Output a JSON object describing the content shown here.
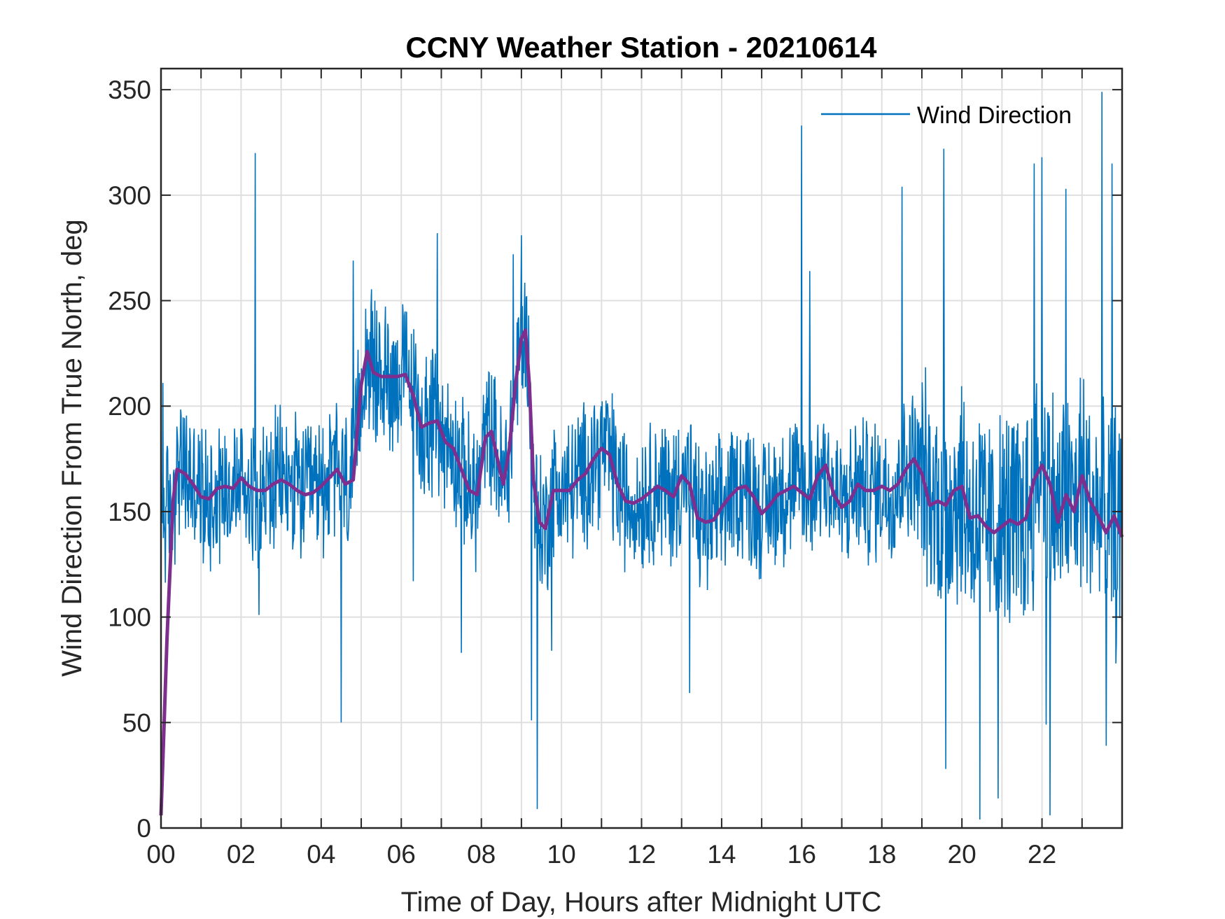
{
  "colors": {
    "raw": "#0072BD",
    "smooth": "#7E2F8E",
    "axis": "#262626",
    "grid": "#DFDFDF",
    "background": "#FFFFFF"
  },
  "chart_data": {
    "type": "line",
    "title": "CCNY Weather Station - 20210614",
    "xlabel": "Time of Day, Hours after Midnight UTC",
    "ylabel": "Wind Direction From True North, deg",
    "xlim": [
      0,
      24
    ],
    "ylim": [
      0,
      360
    ],
    "x_ticks": [
      0,
      2,
      4,
      6,
      8,
      10,
      12,
      14,
      16,
      18,
      20,
      22
    ],
    "x_tick_labels": [
      "00",
      "02",
      "04",
      "06",
      "08",
      "10",
      "12",
      "14",
      "16",
      "18",
      "20",
      "22"
    ],
    "y_ticks": [
      0,
      50,
      100,
      150,
      200,
      250,
      300,
      350
    ],
    "y_tick_labels": [
      "0",
      "50",
      "100",
      "150",
      "200",
      "250",
      "300",
      "350"
    ],
    "grid": true,
    "legend": {
      "entries": [
        "Wind Direction"
      ],
      "location": "top-right"
    },
    "series": [
      {
        "name": "Wind Direction",
        "style": "raw-noisy",
        "baseline": "follows smoothed series",
        "spread_deg": 30,
        "sample_step_hours": 0.012,
        "notable_points": [
          {
            "x": 0.05,
            "y": 211
          },
          {
            "x": 2.35,
            "y": 320
          },
          {
            "x": 2.45,
            "y": 101
          },
          {
            "x": 4.5,
            "y": 50
          },
          {
            "x": 4.8,
            "y": 269
          },
          {
            "x": 6.3,
            "y": 117
          },
          {
            "x": 6.9,
            "y": 282
          },
          {
            "x": 7.5,
            "y": 83
          },
          {
            "x": 8.8,
            "y": 272
          },
          {
            "x": 9.0,
            "y": 281
          },
          {
            "x": 9.25,
            "y": 51
          },
          {
            "x": 9.4,
            "y": 9
          },
          {
            "x": 9.75,
            "y": 84
          },
          {
            "x": 13.2,
            "y": 64
          },
          {
            "x": 16.0,
            "y": 333
          },
          {
            "x": 16.2,
            "y": 264
          },
          {
            "x": 18.5,
            "y": 304
          },
          {
            "x": 19.55,
            "y": 322
          },
          {
            "x": 19.6,
            "y": 28
          },
          {
            "x": 20.45,
            "y": 4
          },
          {
            "x": 20.9,
            "y": 14
          },
          {
            "x": 21.8,
            "y": 315
          },
          {
            "x": 22.0,
            "y": 318
          },
          {
            "x": 22.1,
            "y": 49
          },
          {
            "x": 22.2,
            "y": 6
          },
          {
            "x": 22.6,
            "y": 303
          },
          {
            "x": 23.5,
            "y": 349
          },
          {
            "x": 23.6,
            "y": 39
          },
          {
            "x": 23.75,
            "y": 315
          },
          {
            "x": 23.85,
            "y": 78
          }
        ]
      },
      {
        "name": "Smoothed",
        "in_legend": false,
        "x": [
          0,
          0.15,
          0.3,
          0.4,
          0.6,
          0.8,
          1.0,
          1.2,
          1.4,
          1.6,
          1.8,
          2.0,
          2.2,
          2.4,
          2.6,
          2.8,
          3.0,
          3.2,
          3.4,
          3.6,
          3.8,
          4.0,
          4.2,
          4.4,
          4.6,
          4.8,
          5.0,
          5.15,
          5.3,
          5.5,
          5.7,
          5.9,
          6.1,
          6.3,
          6.5,
          6.7,
          6.9,
          7.1,
          7.3,
          7.5,
          7.7,
          7.9,
          8.1,
          8.25,
          8.4,
          8.55,
          8.7,
          8.85,
          9.0,
          9.1,
          9.2,
          9.3,
          9.45,
          9.6,
          9.8,
          10.0,
          10.2,
          10.4,
          10.6,
          10.8,
          11.0,
          11.2,
          11.4,
          11.6,
          11.8,
          12.0,
          12.2,
          12.4,
          12.6,
          12.8,
          13.0,
          13.2,
          13.4,
          13.6,
          13.8,
          14.0,
          14.2,
          14.4,
          14.6,
          14.8,
          15.0,
          15.2,
          15.4,
          15.6,
          15.8,
          16.0,
          16.2,
          16.4,
          16.6,
          16.8,
          17.0,
          17.2,
          17.4,
          17.6,
          17.8,
          18.0,
          18.2,
          18.4,
          18.6,
          18.8,
          19.0,
          19.2,
          19.4,
          19.6,
          19.8,
          20.0,
          20.2,
          20.4,
          20.6,
          20.8,
          21.0,
          21.2,
          21.4,
          21.6,
          21.8,
          22.0,
          22.2,
          22.4,
          22.6,
          22.8,
          23.0,
          23.2,
          23.4,
          23.6,
          23.8,
          24.0
        ],
        "values": [
          6,
          90,
          155,
          170,
          168,
          163,
          157,
          156,
          161,
          162,
          161,
          166,
          162,
          160,
          160,
          163,
          165,
          163,
          160,
          158,
          159,
          162,
          166,
          170,
          163,
          165,
          210,
          226,
          216,
          214,
          214,
          214,
          215,
          205,
          190,
          192,
          193,
          183,
          180,
          170,
          160,
          158,
          185,
          188,
          175,
          163,
          180,
          210,
          232,
          236,
          210,
          165,
          145,
          142,
          160,
          160,
          160,
          165,
          168,
          175,
          180,
          177,
          163,
          155,
          154,
          156,
          159,
          162,
          160,
          157,
          167,
          163,
          147,
          145,
          146,
          152,
          157,
          161,
          162,
          157,
          149,
          153,
          158,
          160,
          162,
          159,
          156,
          167,
          172,
          158,
          152,
          155,
          163,
          160,
          160,
          162,
          160,
          163,
          170,
          175,
          168,
          153,
          155,
          153,
          160,
          162,
          147,
          148,
          143,
          140,
          143,
          146,
          144,
          147,
          165,
          172,
          163,
          145,
          158,
          150,
          167,
          155,
          148,
          140,
          148,
          138
        ]
      }
    ]
  }
}
